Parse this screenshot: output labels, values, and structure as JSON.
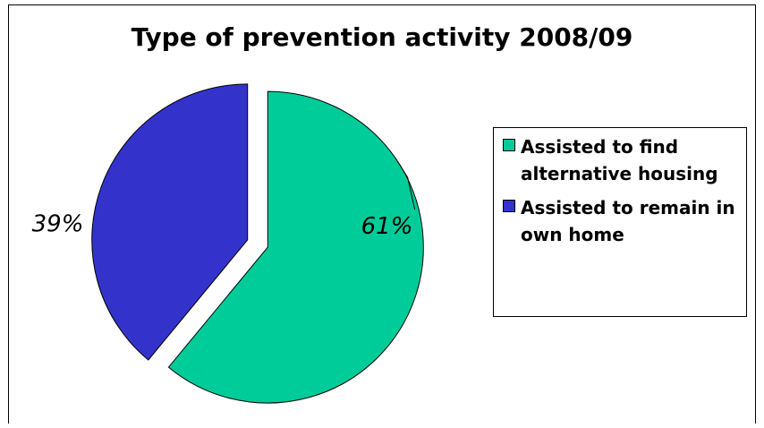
{
  "chart_data": {
    "type": "pie",
    "title": "Type of prevention activity 2008/09",
    "slices": [
      {
        "label": "Assisted to find alternative housing",
        "value": 61,
        "display": "61%",
        "color": "#00cc99"
      },
      {
        "label": "Assisted to remain in own home",
        "value": 39,
        "display": "39%",
        "color": "#3333cc"
      }
    ],
    "exploded": true,
    "legend_position": "right"
  }
}
